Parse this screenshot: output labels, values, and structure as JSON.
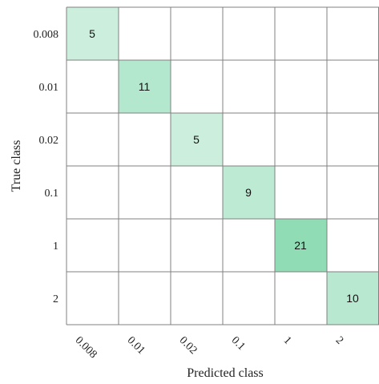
{
  "chart_data": {
    "type": "heatmap",
    "title": "",
    "xlabel": "Predicted class",
    "ylabel": "True class",
    "x_categories": [
      "0.008",
      "0.01",
      "0.02",
      "0.1",
      "1",
      "2"
    ],
    "y_categories": [
      "0.008",
      "0.01",
      "0.02",
      "0.1",
      "1",
      "2"
    ],
    "values": [
      [
        5,
        0,
        0,
        0,
        0,
        0
      ],
      [
        0,
        11,
        0,
        0,
        0,
        0
      ],
      [
        0,
        0,
        5,
        0,
        0,
        0
      ],
      [
        0,
        0,
        0,
        9,
        0,
        0
      ],
      [
        0,
        0,
        0,
        0,
        21,
        0
      ],
      [
        0,
        0,
        0,
        0,
        0,
        10
      ]
    ],
    "show_zero_labels": false,
    "grid": true,
    "colors": {
      "low": "#ffffff",
      "high": "#8fdcb5",
      "grid": "#808080",
      "text": "#111111"
    }
  }
}
